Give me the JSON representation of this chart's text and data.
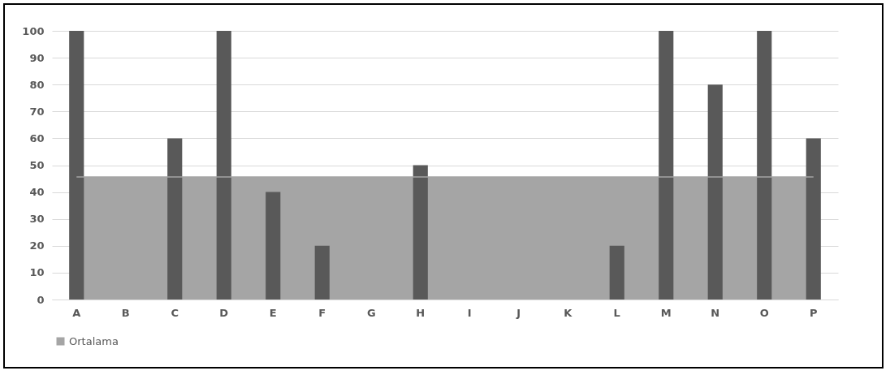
{
  "chart_data": {
    "type": "bar",
    "categories": [
      "A",
      "B",
      "C",
      "D",
      "E",
      "F",
      "G",
      "H",
      "I",
      "J",
      "K",
      "L",
      "M",
      "N",
      "O",
      "P"
    ],
    "series": [
      {
        "color": "#595959",
        "values": [
          100,
          0,
          60,
          100,
          40,
          20,
          0,
          50,
          0,
          0,
          0,
          20,
          100,
          80,
          100,
          60
        ]
      },
      {
        "type": "area",
        "name": "Ortalama",
        "color": "#a5a5a5",
        "values": [
          45.6,
          45.6,
          45.6,
          45.6,
          45.6,
          45.6,
          45.6,
          45.6,
          45.6,
          45.6,
          45.6,
          45.6,
          45.6,
          45.6,
          45.6,
          45.6
        ]
      }
    ],
    "ylim": [
      0,
      100
    ],
    "yticks": [
      0,
      10,
      20,
      30,
      40,
      50,
      60,
      70,
      80,
      90,
      100
    ],
    "grid": "y",
    "legend": "bottom"
  }
}
